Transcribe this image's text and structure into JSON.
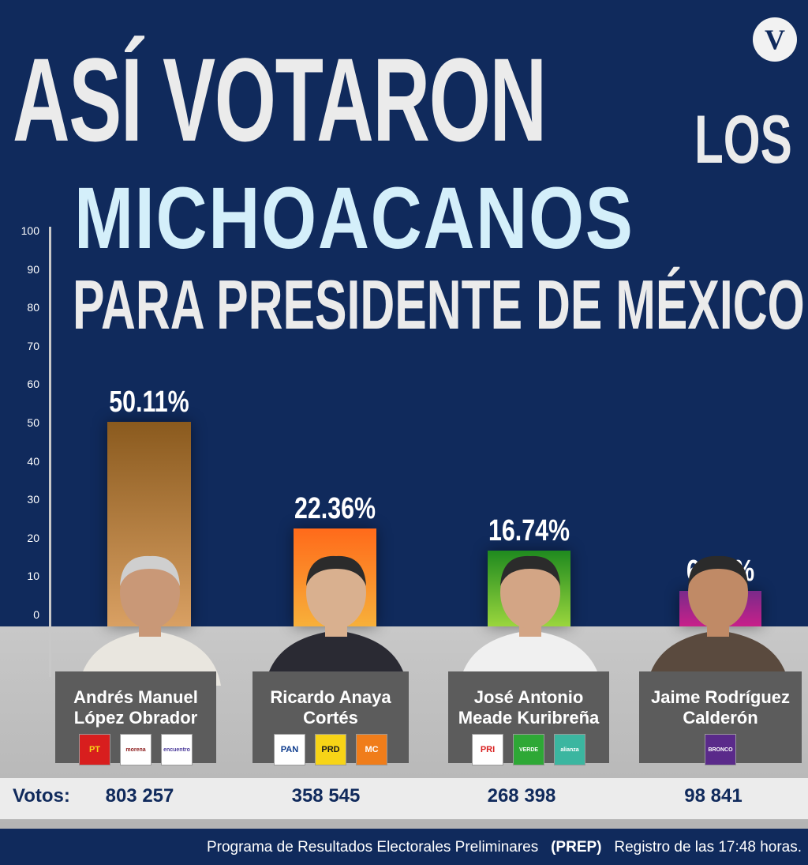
{
  "title": {
    "line1": "ASÍ VOTARON",
    "line1_suffix": "LOS",
    "line2": "MICHOACANOS",
    "line3": "PARA PRESIDENTE DE MÉXICO"
  },
  "logo_letter": "V",
  "colors": {
    "background": "#102a5c",
    "title_light": "#ebebeb",
    "title_highlight": "#d4effa",
    "bottom_band": "#c0c0c0",
    "name_box": "#5c5c5c"
  },
  "chart_data": {
    "type": "bar",
    "categories": [
      "Andrés Manuel López Obrador",
      "Ricardo Anaya Cortés",
      "José Antonio Meade Kuribreña",
      "Jaime Rodríguez Calderón"
    ],
    "values": [
      50.11,
      22.36,
      16.74,
      6.16
    ],
    "value_labels": [
      "50.11%",
      "22.36%",
      "16.74%",
      "6.16%"
    ],
    "ylim": [
      0,
      100
    ],
    "yticks": [
      "100",
      "90",
      "80",
      "70",
      "60",
      "50",
      "40",
      "30",
      "20",
      "10",
      "0"
    ],
    "grid": false,
    "bar_colors": [
      [
        "#8a5a1e",
        "#d9a063"
      ],
      [
        "#ff6a1a",
        "#f7b03a"
      ],
      [
        "#1f8a1f",
        "#9ad63d"
      ],
      [
        "#7a2a8a",
        "#c8208a"
      ]
    ]
  },
  "candidates": [
    {
      "name_line1": "Andrés Manuel",
      "name_line2": "López Obrador",
      "votes": "803 257",
      "photo_icon": "candidate-photo",
      "parties": [
        {
          "label": "PT",
          "bg": "#d81e1e",
          "fg": "#f7d417"
        },
        {
          "label": "morena",
          "bg": "#ffffff",
          "fg": "#8b1a1a"
        },
        {
          "label": "encuentro",
          "bg": "#ffffff",
          "fg": "#4a3a9a"
        }
      ]
    },
    {
      "name_line1": "Ricardo Anaya",
      "name_line2": "Cortés",
      "votes": "358 545",
      "photo_icon": "candidate-photo",
      "parties": [
        {
          "label": "PAN",
          "bg": "#ffffff",
          "fg": "#0b3a8c"
        },
        {
          "label": "PRD",
          "bg": "#f7d417",
          "fg": "#1a1a1a"
        },
        {
          "label": "MC",
          "bg": "#f07d1a",
          "fg": "#ffffff"
        }
      ]
    },
    {
      "name_line1": "José Antonio",
      "name_line2": "Meade Kuribreña",
      "votes": "268 398",
      "photo_icon": "candidate-photo",
      "parties": [
        {
          "label": "PRI",
          "bg": "#ffffff",
          "fg": "#d81e1e"
        },
        {
          "label": "VERDE",
          "bg": "#2ea836",
          "fg": "#ffffff"
        },
        {
          "label": "alianza",
          "bg": "#3bb6a0",
          "fg": "#ffffff"
        }
      ]
    },
    {
      "name_line1": "Jaime Rodríguez",
      "name_line2": "Calderón",
      "votes": "98 841",
      "photo_icon": "candidate-photo",
      "parties": [
        {
          "label": "BRONCO",
          "bg": "#5a2a8a",
          "fg": "#ffffff"
        }
      ]
    }
  ],
  "votes_label": "Votos:",
  "source": {
    "text": "Programa de Resultados Electorales Preliminares",
    "abbr": "(PREP)",
    "time": "Registro de las 17:48 horas."
  }
}
